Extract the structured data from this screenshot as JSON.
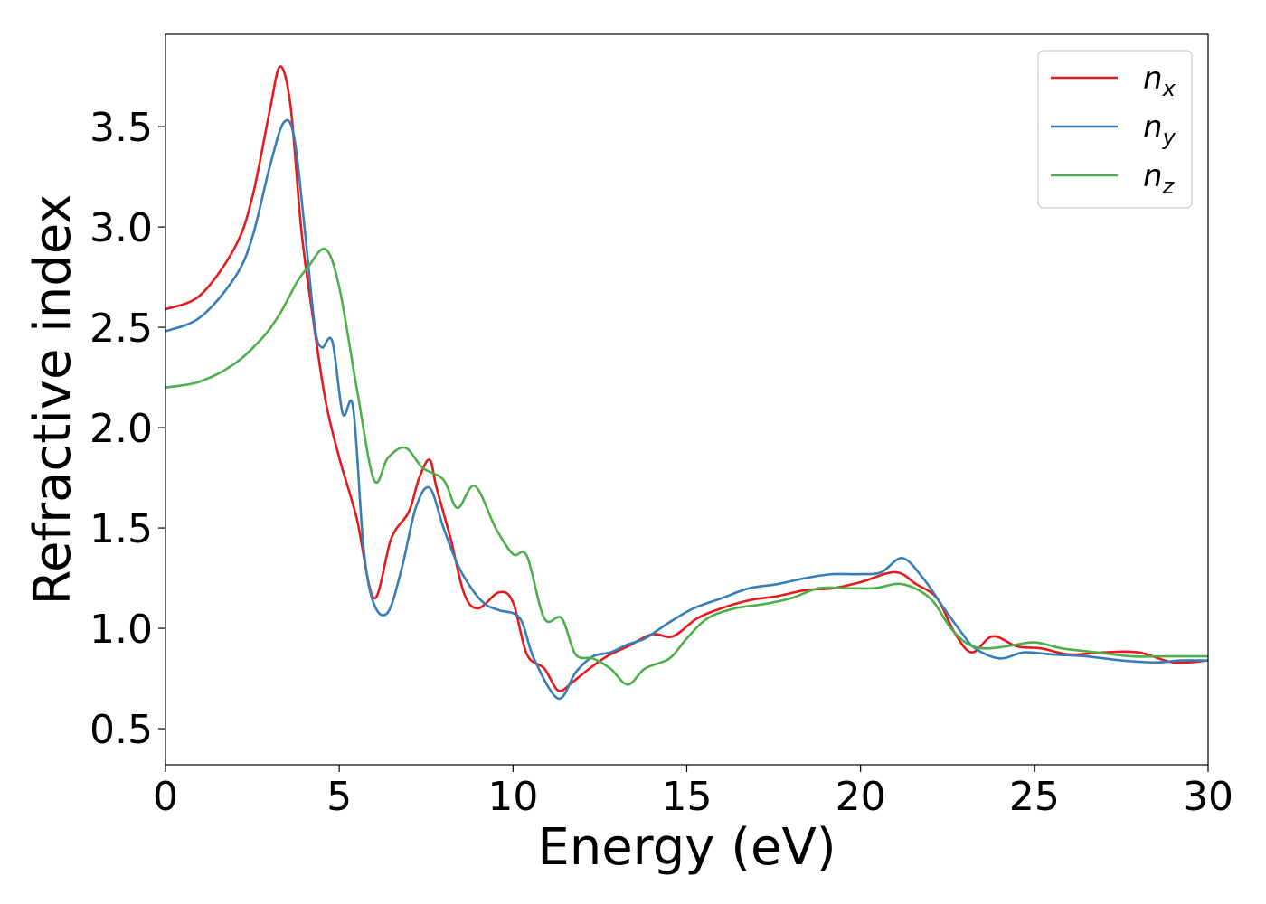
{
  "chart_data": {
    "type": "line",
    "title": "",
    "xlabel": "Energy (eV)",
    "ylabel": "Refractive index",
    "xlim": [
      0,
      30
    ],
    "ylim": [
      0.32,
      3.96
    ],
    "xticks": [
      0,
      5,
      10,
      15,
      20,
      25,
      30
    ],
    "xtick_labels": [
      "0",
      "5",
      "10",
      "15",
      "20",
      "25",
      "30"
    ],
    "yticks": [
      0.5,
      1.0,
      1.5,
      2.0,
      2.5,
      3.0,
      3.5
    ],
    "ytick_labels": [
      "0.5",
      "1.0",
      "1.5",
      "2.0",
      "2.5",
      "3.0",
      "3.5"
    ],
    "grid": false,
    "legend_position": "top-right",
    "series": [
      {
        "name_base": "n",
        "name_sub": "x",
        "color": "#e41a1c",
        "x": [
          0,
          1,
          2,
          2.5,
          3,
          3.3,
          3.6,
          3.9,
          4.2,
          4.6,
          5,
          5.5,
          6,
          6.5,
          7,
          7.3,
          7.6,
          7.8,
          8.2,
          8.6,
          9,
          9.6,
          10,
          10.4,
          10.9,
          11.3,
          11.7,
          12.2,
          12.7,
          13.3,
          14,
          14.6,
          15.3,
          16,
          16.8,
          17.6,
          18.4,
          19.2,
          20,
          21,
          21.6,
          22.2,
          22.7,
          23.2,
          23.8,
          24.5,
          25.2,
          26,
          27,
          28,
          29,
          30
        ],
        "y": [
          2.59,
          2.66,
          2.9,
          3.15,
          3.58,
          3.8,
          3.6,
          3.0,
          2.6,
          2.14,
          1.85,
          1.55,
          1.15,
          1.45,
          1.58,
          1.75,
          1.84,
          1.7,
          1.45,
          1.17,
          1.1,
          1.18,
          1.13,
          0.87,
          0.8,
          0.69,
          0.73,
          0.8,
          0.86,
          0.91,
          0.97,
          0.96,
          1.05,
          1.1,
          1.14,
          1.16,
          1.19,
          1.2,
          1.23,
          1.28,
          1.22,
          1.15,
          0.98,
          0.88,
          0.96,
          0.91,
          0.9,
          0.87,
          0.88,
          0.88,
          0.83,
          0.84
        ]
      },
      {
        "name_base": "n",
        "name_sub": "y",
        "color": "#377eb8",
        "x": [
          0,
          1,
          2,
          2.5,
          3,
          3.4,
          3.7,
          4,
          4.3,
          4.5,
          4.8,
          5.1,
          5.4,
          5.7,
          6,
          6.4,
          6.8,
          7.2,
          7.6,
          8,
          8.4,
          8.8,
          9.2,
          9.6,
          10.2,
          10.6,
          11.3,
          11.8,
          12.3,
          12.8,
          13.3,
          13.8,
          14.5,
          15.2,
          16,
          16.8,
          17.6,
          18.4,
          19.2,
          20,
          20.6,
          21.2,
          21.8,
          22.4,
          22.9,
          23.3,
          24,
          24.7,
          25.5,
          26.5,
          27.5,
          28.5,
          29.2,
          30
        ],
        "y": [
          2.48,
          2.55,
          2.75,
          2.95,
          3.3,
          3.52,
          3.45,
          3.0,
          2.5,
          2.4,
          2.43,
          2.07,
          2.1,
          1.4,
          1.12,
          1.08,
          1.3,
          1.6,
          1.7,
          1.5,
          1.32,
          1.2,
          1.12,
          1.09,
          1.05,
          0.85,
          0.65,
          0.78,
          0.86,
          0.88,
          0.92,
          0.95,
          1.03,
          1.1,
          1.15,
          1.2,
          1.22,
          1.25,
          1.27,
          1.27,
          1.28,
          1.35,
          1.25,
          1.1,
          0.98,
          0.9,
          0.85,
          0.88,
          0.87,
          0.86,
          0.84,
          0.83,
          0.84,
          0.84
        ]
      },
      {
        "name_base": "n",
        "name_sub": "z",
        "color": "#4daf4a",
        "x": [
          0,
          1,
          2,
          2.8,
          3.3,
          3.8,
          4.1,
          4.6,
          5,
          5.5,
          6,
          6.4,
          6.9,
          7.4,
          8,
          8.4,
          8.9,
          9.5,
          10,
          10.4,
          10.9,
          11.4,
          11.8,
          12.3,
          12.8,
          13.3,
          13.8,
          14.5,
          15,
          15.6,
          16.4,
          17.2,
          18,
          18.8,
          19.6,
          20.4,
          21.2,
          22,
          22.6,
          23.1,
          23.6,
          24.2,
          25,
          25.8,
          26.8,
          27.8,
          28.8,
          30
        ],
        "y": [
          2.2,
          2.23,
          2.32,
          2.45,
          2.57,
          2.73,
          2.8,
          2.89,
          2.7,
          2.2,
          1.74,
          1.85,
          1.9,
          1.8,
          1.74,
          1.6,
          1.71,
          1.5,
          1.37,
          1.36,
          1.05,
          1.05,
          0.87,
          0.85,
          0.8,
          0.72,
          0.8,
          0.85,
          0.95,
          1.05,
          1.1,
          1.12,
          1.15,
          1.2,
          1.2,
          1.2,
          1.22,
          1.15,
          1.0,
          0.92,
          0.9,
          0.91,
          0.93,
          0.9,
          0.88,
          0.86,
          0.86,
          0.86
        ]
      }
    ]
  }
}
